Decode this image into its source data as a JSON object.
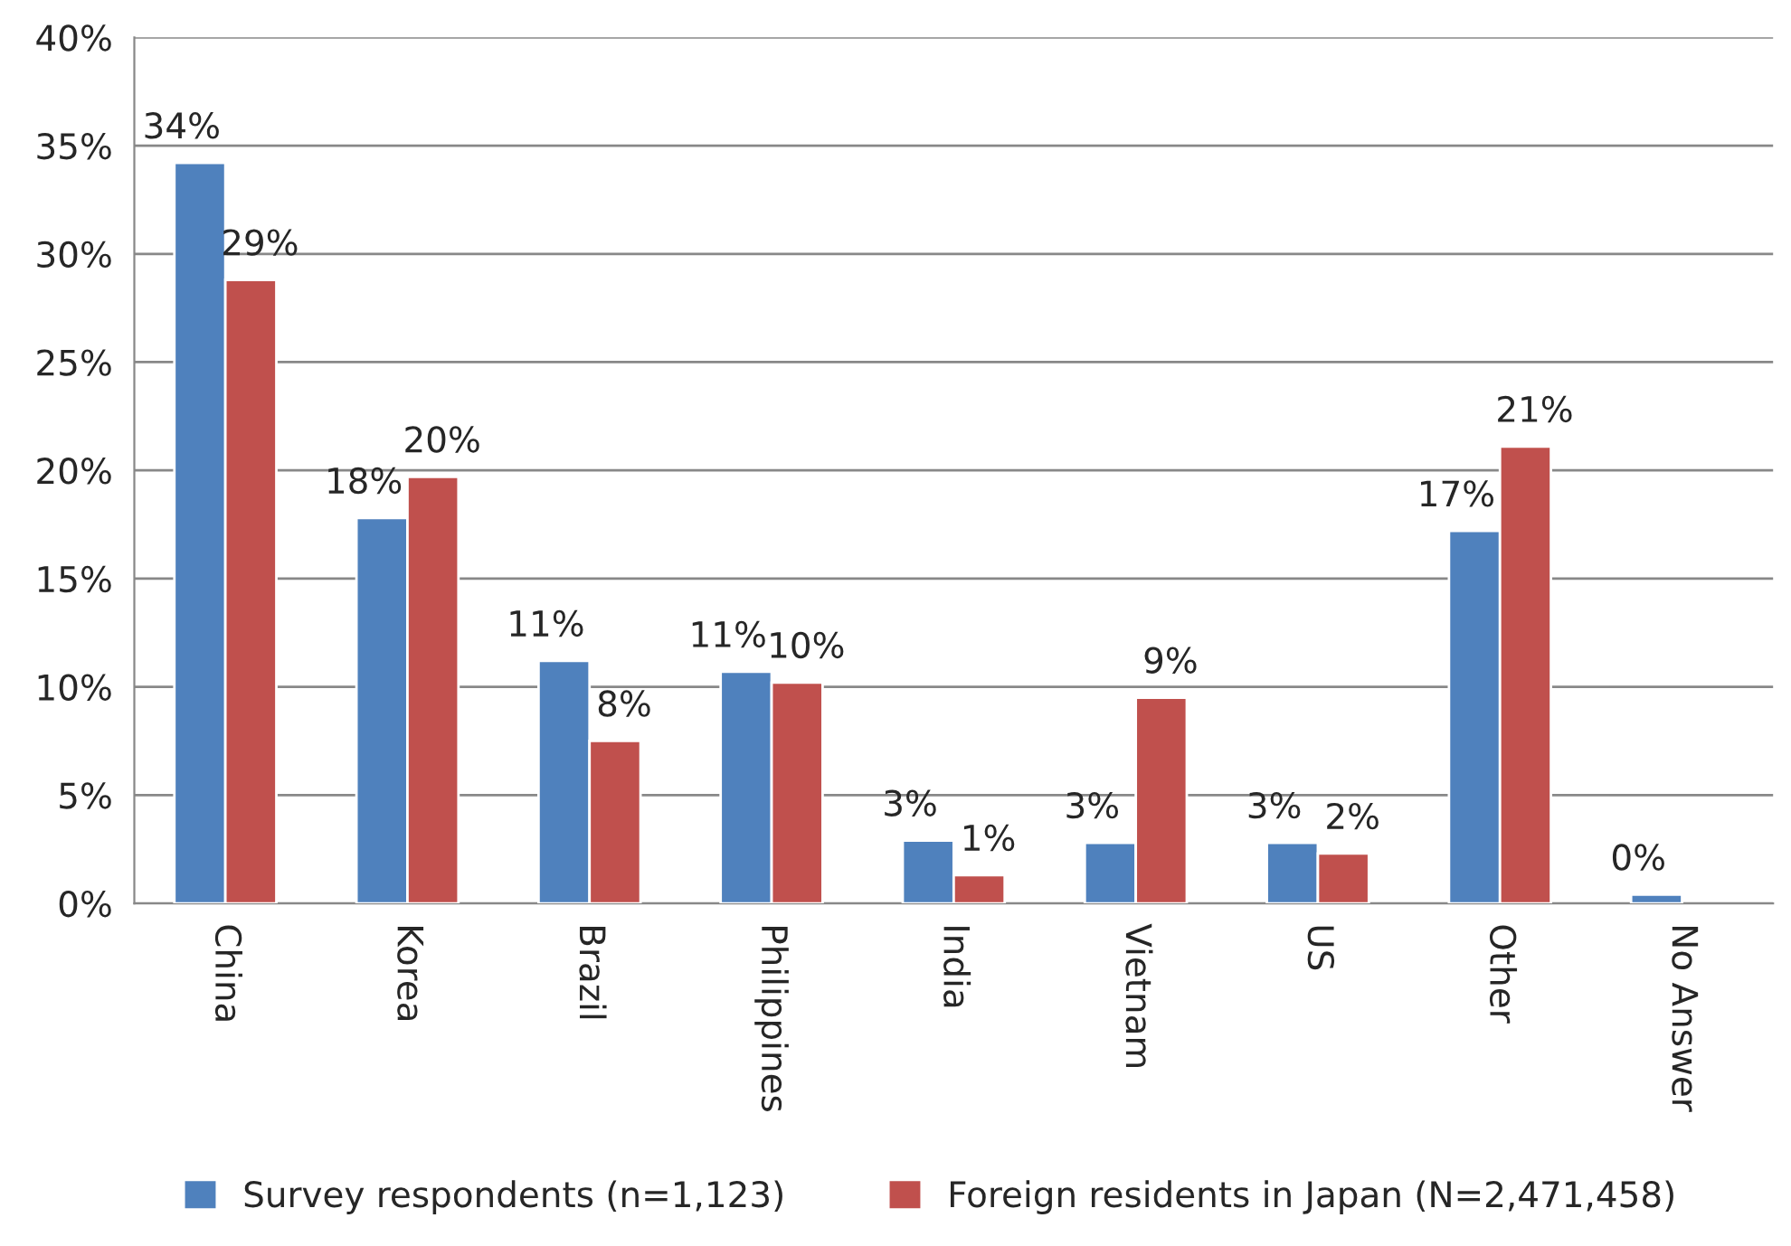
{
  "chart_data": {
    "type": "bar",
    "categories": [
      "China",
      "Korea",
      "Brazil",
      "Philippines",
      "India",
      "Vietnam",
      "US",
      "Other",
      "No Answer"
    ],
    "series": [
      {
        "name": "Survey respondents (n=1,123)",
        "color": "#4f81bd",
        "values": [
          34.2,
          17.8,
          11.2,
          10.7,
          2.9,
          2.8,
          2.8,
          17.2,
          0.4
        ],
        "value_labels": [
          "34%",
          "18%",
          "11%",
          "11%",
          "3%",
          "3%",
          "3%",
          "17%",
          "0%"
        ]
      },
      {
        "name": "Foreign residents in Japan (N=2,471,458)",
        "color": "#c0504d",
        "values": [
          28.8,
          19.7,
          7.5,
          10.2,
          1.3,
          9.5,
          2.3,
          21.1,
          null
        ],
        "value_labels": [
          "29%",
          "20%",
          "8%",
          "10%",
          "1%",
          "9%",
          "2%",
          "21%",
          null
        ]
      }
    ],
    "ylim": [
      0,
      40
    ],
    "yticks": [
      {
        "value": 0,
        "label": "0%"
      },
      {
        "value": 5,
        "label": "5%"
      },
      {
        "value": 10,
        "label": "10%"
      },
      {
        "value": 15,
        "label": "15%"
      },
      {
        "value": 20,
        "label": "20%"
      },
      {
        "value": 25,
        "label": "25%"
      },
      {
        "value": 30,
        "label": "30%"
      },
      {
        "value": 35,
        "label": "35%"
      },
      {
        "value": 40,
        "label": "40%"
      }
    ],
    "grid": "y",
    "legend": "bottom"
  }
}
